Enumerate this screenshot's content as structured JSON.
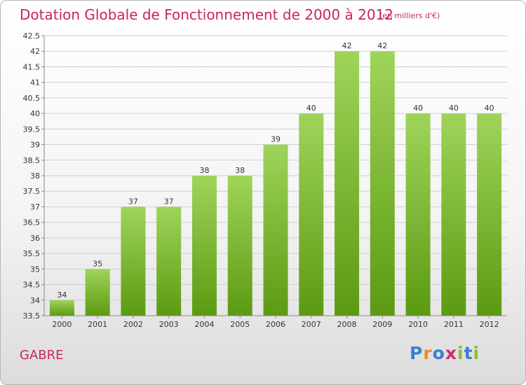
{
  "title": "Dotation Globale de Fonctionnement de 2000 à 2012",
  "subtitle": "(en milliers d'€)",
  "commune": "GABRE",
  "logo": {
    "text": "Proxiti",
    "letter_colors": [
      "#3a7fd0",
      "#f08a1e",
      "#3a7fd0",
      "#d02a6a",
      "#8cbf2a",
      "#3a7fd0",
      "#8cbf2a"
    ]
  },
  "colors": {
    "title": "#cc2266",
    "bar_top": "#9fd45a",
    "bar_bottom": "#5c9a12",
    "grid": "#d0d0d0"
  },
  "chart_data": {
    "type": "bar",
    "categories": [
      "2000",
      "2001",
      "2002",
      "2003",
      "2004",
      "2005",
      "2006",
      "2007",
      "2008",
      "2009",
      "2010",
      "2011",
      "2012"
    ],
    "values": [
      34,
      35,
      37,
      37,
      38,
      38,
      39,
      40,
      42,
      42,
      40,
      40,
      40
    ],
    "data_labels": [
      "34",
      "35",
      "37",
      "37",
      "38",
      "38",
      "39",
      "40",
      "42",
      "42",
      "40",
      "40",
      "40"
    ],
    "ylim": [
      33.5,
      42.5
    ],
    "yticks": [
      33.5,
      34,
      34.5,
      35,
      35.5,
      36,
      36.5,
      37,
      37.5,
      38,
      38.5,
      39,
      39.5,
      40,
      40.5,
      41,
      41.5,
      42,
      42.5
    ],
    "ytick_labels": [
      "33.5",
      "34",
      "34.5",
      "35",
      "35.5",
      "36",
      "36.5",
      "37",
      "37.5",
      "38",
      "38.5",
      "39",
      "39.5",
      "40",
      "40.5",
      "41",
      "41.5",
      "42",
      "42.5"
    ],
    "grid": "horizontal",
    "xlabel": "",
    "ylabel": ""
  }
}
